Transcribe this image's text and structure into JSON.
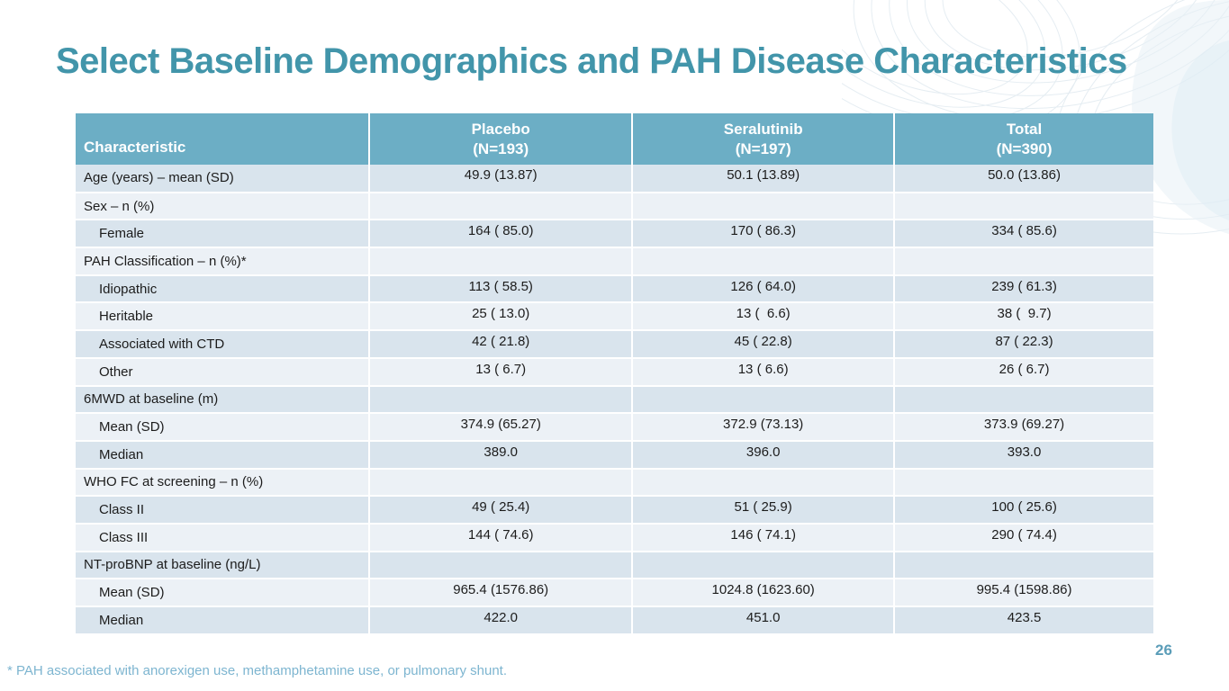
{
  "slide": {
    "title": "Select Baseline Demographics and PAH Disease Characteristics",
    "footnote": "* PAH associated with anorexigen use, methamphetamine use, or pulmonary shunt.",
    "page_number": "26"
  },
  "colors": {
    "title": "#4295aa",
    "header-bg": "#6caec5",
    "stripe-dark": "#d9e4ed",
    "stripe-light": "#ecf1f6",
    "body-text": "#1c1c1c",
    "footnote": "#7db5d0",
    "page": "#5b9db8",
    "decor-line": "#dde7ee",
    "decor-fill": "#e7f0f6"
  },
  "table": {
    "header": {
      "characteristic": "Characteristic",
      "groups": [
        {
          "name": "Placebo",
          "n": "(N=193)"
        },
        {
          "name": "Seralutinib",
          "n": "(N=197)"
        },
        {
          "name": "Total",
          "n": "(N=390)"
        }
      ]
    },
    "rows": [
      {
        "label": "Age (years) – mean (SD)",
        "indent": false,
        "values": [
          "49.9 (13.87)",
          "50.1 (13.89)",
          "50.0 (13.86)"
        ]
      },
      {
        "label": "Sex – n (%)",
        "indent": false,
        "values": [
          "",
          "",
          ""
        ]
      },
      {
        "label": "Female",
        "indent": true,
        "values": [
          "164 ( 85.0)",
          "170 ( 86.3)",
          "334 ( 85.6)"
        ]
      },
      {
        "label": "PAH Classification – n (%)*",
        "indent": false,
        "values": [
          "",
          "",
          ""
        ]
      },
      {
        "label": "Idiopathic",
        "indent": true,
        "values": [
          "113 ( 58.5)",
          "126 ( 64.0)",
          "239 ( 61.3)"
        ]
      },
      {
        "label": "Heritable",
        "indent": true,
        "values": [
          "25 ( 13.0)",
          "13 (  6.6)",
          "38 (  9.7)"
        ]
      },
      {
        "label": "Associated with CTD",
        "indent": true,
        "values": [
          "42 ( 21.8)",
          "45 ( 22.8)",
          "87 ( 22.3)"
        ]
      },
      {
        "label": "Other",
        "indent": true,
        "values": [
          "13 ( 6.7)",
          "13 ( 6.6)",
          "26 ( 6.7)"
        ]
      },
      {
        "label": "6MWD at baseline (m)",
        "indent": false,
        "values": [
          "",
          "",
          ""
        ]
      },
      {
        "label": "Mean (SD)",
        "indent": true,
        "values": [
          "374.9 (65.27)",
          "372.9 (73.13)",
          "373.9 (69.27)"
        ]
      },
      {
        "label": "Median",
        "indent": true,
        "values": [
          "389.0",
          "396.0",
          "393.0"
        ]
      },
      {
        "label": "WHO FC at screening – n (%)",
        "indent": false,
        "values": [
          "",
          "",
          ""
        ]
      },
      {
        "label": "Class II",
        "indent": true,
        "values": [
          "49 ( 25.4)",
          "51 ( 25.9)",
          "100 ( 25.6)"
        ]
      },
      {
        "label": "Class III",
        "indent": true,
        "values": [
          "144 ( 74.6)",
          "146 ( 74.1)",
          "290 ( 74.4)"
        ]
      },
      {
        "label": "NT-proBNP at baseline (ng/L)",
        "indent": false,
        "values": [
          "",
          "",
          ""
        ]
      },
      {
        "label": "Mean (SD)",
        "indent": true,
        "values": [
          "965.4 (1576.86)",
          "1024.8 (1623.60)",
          "995.4 (1598.86)"
        ]
      },
      {
        "label": "Median",
        "indent": true,
        "values": [
          "422.0",
          "451.0",
          "423.5"
        ]
      }
    ]
  }
}
